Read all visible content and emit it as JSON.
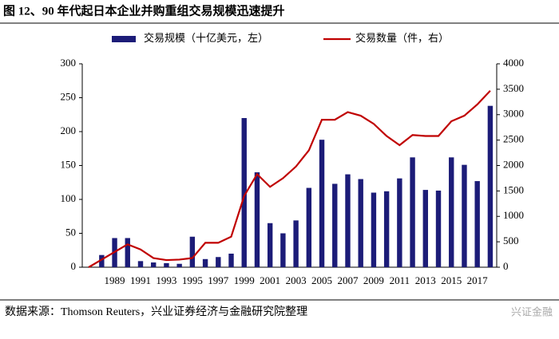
{
  "title": "图 12、90 年代起日本企业并购重组交易规模迅速提升",
  "source": "数据来源：Thomson Reuters，兴业证券经济与金融研究院整理",
  "watermark": "兴证金融",
  "chart_data": {
    "type": "bar",
    "categories": [
      null,
      null,
      "1989",
      null,
      "1991",
      null,
      "1993",
      null,
      "1995",
      null,
      "1997",
      null,
      "1999",
      null,
      "2001",
      null,
      "2003",
      null,
      "2005",
      null,
      "2007",
      null,
      "2009",
      null,
      "2011",
      null,
      "2013",
      null,
      "2015",
      null,
      "2017",
      null
    ],
    "series": [
      {
        "name": "交易规模（十亿美元，左）",
        "color": "#1c1c78",
        "values": [
          0,
          18,
          43,
          43,
          9,
          7,
          6,
          5,
          45,
          12,
          15,
          20,
          220,
          140,
          65,
          50,
          69,
          117,
          188,
          123,
          137,
          130,
          110,
          112,
          131,
          162,
          114,
          113,
          162,
          151,
          127,
          238
        ]
      },
      {
        "name": "交易数量（件，右）",
        "color": "#c00000",
        "type": "line",
        "axis": "y2",
        "values": [
          0,
          150,
          300,
          450,
          350,
          180,
          140,
          150,
          180,
          480,
          480,
          600,
          1400,
          1830,
          1580,
          1750,
          1980,
          2300,
          2900,
          2900,
          3050,
          2980,
          2820,
          2580,
          2400,
          2600,
          2580,
          2580,
          2870,
          2980,
          3200,
          3470
        ]
      }
    ],
    "ylim": [
      0,
      300
    ],
    "yticks": [
      0,
      50,
      100,
      150,
      200,
      250,
      300
    ],
    "y2lim": [
      0,
      4000
    ],
    "y2ticks": [
      0,
      500,
      1000,
      1500,
      2000,
      2500,
      3000,
      3500,
      4000
    ],
    "grid": false
  }
}
